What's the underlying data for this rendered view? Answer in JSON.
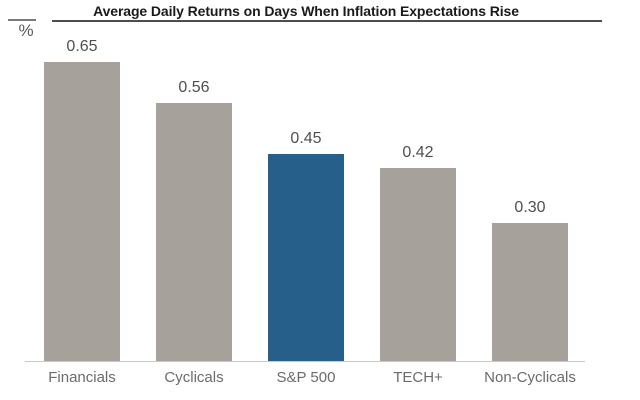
{
  "colors": {
    "bar_default": "#a7a19b",
    "bar_highlight": "#255f8a",
    "axis_line": "#c9c9c9",
    "title_text": "#1a1a1a",
    "title_rule": "#4d4d4d",
    "unit_rule": "#7a7a7a",
    "unit_text": "#595959",
    "value_label_text": "#4f4f4f",
    "category_label_text": "#6b6b6b",
    "background": "#ffffff"
  },
  "chart_data": {
    "type": "bar",
    "title": "Average Daily Returns on Days When Inflation Expectations Rise",
    "ylabel": "%",
    "xlabel": "",
    "categories": [
      "Financials",
      "Cyclicals",
      "S&P 500",
      "TECH+",
      "Non-Cyclicals"
    ],
    "values": [
      0.65,
      0.56,
      0.45,
      0.42,
      0.3
    ],
    "value_labels": [
      "0.65",
      "0.56",
      "0.45",
      "0.42",
      "0.30"
    ],
    "highlight_index": 2,
    "highlight_category": "S&P 500",
    "ylim": [
      0,
      0.7
    ],
    "grid": false,
    "legend": null,
    "value_labels_position": "above-bars",
    "unit_label_position": "top-left"
  }
}
